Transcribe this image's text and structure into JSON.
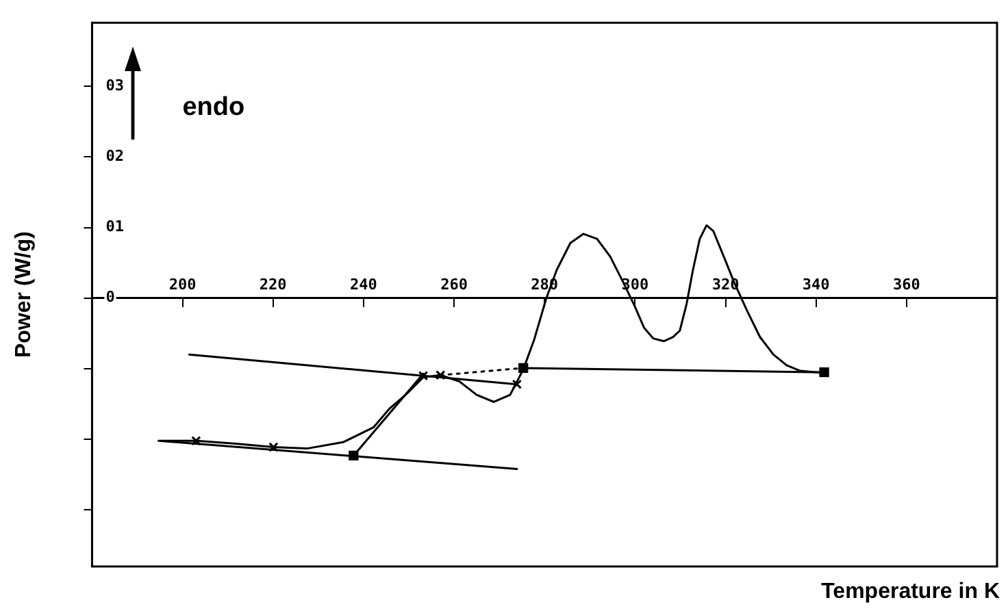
{
  "chart_data": {
    "type": "line",
    "ylabel": "Power (W/g)",
    "xlabel": "Temperature in K",
    "annotations": [
      "endo"
    ],
    "xlim": [
      180,
      380
    ],
    "xticks": [
      200,
      220,
      240,
      260,
      280,
      300,
      320,
      340,
      360
    ],
    "ylim": [
      -3.8,
      3.9
    ],
    "yticks": [
      {
        "value": 3,
        "label": "03"
      },
      {
        "value": 2,
        "label": "02"
      },
      {
        "value": 1,
        "label": "01"
      },
      0,
      {
        "value": -1,
        "label": null
      },
      {
        "value": -2,
        "label": null
      },
      {
        "value": -3,
        "label": null
      }
    ],
    "grid": false,
    "series": [
      {
        "color": "#000000",
        "marker": "none",
        "line_style": "solid",
        "x": [
          195.0,
          203.0,
          211.8,
          220.1,
          227.5,
          235.5,
          242.2,
          245.8,
          249.3,
          253.2,
          257.0,
          261.2,
          265.0,
          268.8,
          272.4,
          275.3,
          277.7,
          280.4,
          282.7,
          285.7,
          288.6,
          291.6,
          294.5,
          297.5,
          299.9,
          302.0,
          304.0,
          306.4,
          308.4,
          309.9,
          311.4,
          312.8,
          314.3,
          315.8,
          317.3,
          319.6,
          322.0,
          324.7,
          327.6,
          330.6,
          333.5,
          336.5,
          340.3,
          341.8
        ],
        "values": [
          -2.02,
          -2.02,
          -2.06,
          -2.11,
          -2.13,
          -2.04,
          -1.83,
          -1.56,
          -1.37,
          -1.12,
          -1.09,
          -1.18,
          -1.37,
          -1.47,
          -1.37,
          -1.01,
          -0.59,
          0.0,
          0.4,
          0.78,
          0.91,
          0.84,
          0.59,
          0.21,
          -0.11,
          -0.42,
          -0.57,
          -0.61,
          -0.55,
          -0.46,
          -0.08,
          0.4,
          0.84,
          1.03,
          0.95,
          0.59,
          0.21,
          -0.17,
          -0.55,
          -0.8,
          -0.95,
          -1.03,
          -1.05,
          -1.05
        ]
      },
      {
        "color": "#000000",
        "marker": "none",
        "line_style": "solid",
        "x": [
          194.7,
          273.9
        ],
        "values": [
          -2.02,
          -2.42
        ]
      },
      {
        "color": "#000000",
        "marker": "none",
        "line_style": "solid",
        "x": [
          201.5,
          273.9
        ],
        "values": [
          -0.8,
          -1.22
        ]
      },
      {
        "color": "#000000",
        "marker": "none",
        "line_style": "solid",
        "x": [
          237.8,
          253.2
        ],
        "values": [
          -2.23,
          -1.07
        ]
      },
      {
        "color": "#000000",
        "marker": "none",
        "line_style": "dotted",
        "x": [
          257.0,
          275.3
        ],
        "values": [
          -1.09,
          -0.99
        ]
      },
      {
        "color": "#000000",
        "marker": "none",
        "line_style": "solid",
        "x": [
          275.3,
          341.8
        ],
        "values": [
          -0.99,
          -1.05
        ]
      },
      {
        "type": "scatter",
        "color": "#000000",
        "marker": "cross",
        "x": [
          203.0,
          220.1,
          253.2,
          257.0,
          273.9
        ],
        "values": [
          -2.02,
          -2.11,
          -1.1,
          -1.09,
          -1.22
        ]
      },
      {
        "type": "scatter",
        "color": "#000000",
        "marker": "square",
        "x": [
          237.8,
          275.3,
          341.8
        ],
        "values": [
          -2.23,
          -0.99,
          -1.05
        ]
      }
    ]
  }
}
